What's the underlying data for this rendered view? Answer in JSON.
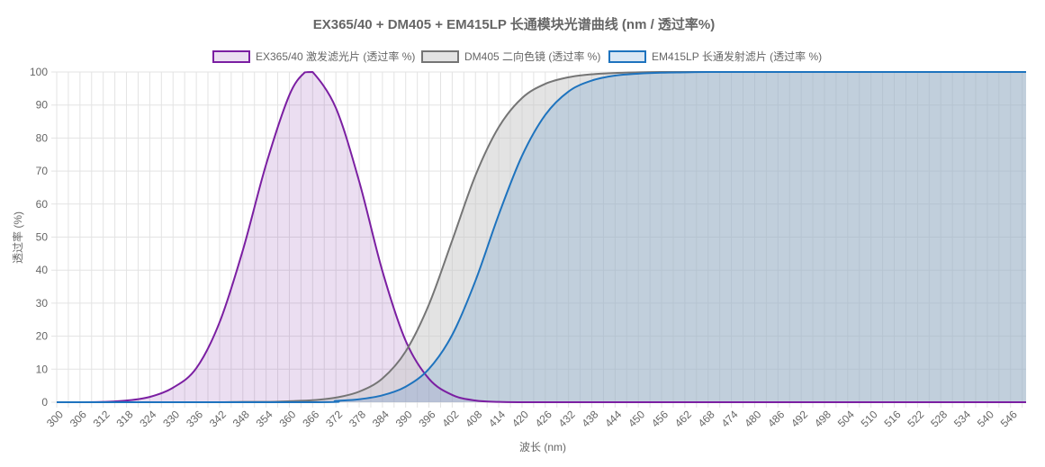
{
  "chart_data": {
    "type": "area",
    "title": "EX365/40 + DM405 + EM415LP 长通模块光谱曲线 (nm / 透过率%)",
    "xlabel": "波长 (nm)",
    "ylabel": "透过率 (%)",
    "xlim": [
      300,
      550
    ],
    "ylim": [
      0,
      100
    ],
    "x_ticks": [
      300,
      306,
      312,
      318,
      324,
      330,
      336,
      342,
      348,
      354,
      360,
      366,
      372,
      378,
      384,
      390,
      396,
      402,
      408,
      414,
      420,
      426,
      432,
      438,
      444,
      450,
      456,
      462,
      468,
      474,
      480,
      486,
      492,
      498,
      504,
      510,
      516,
      522,
      528,
      534,
      540,
      546
    ],
    "y_ticks": [
      0,
      10,
      20,
      30,
      40,
      50,
      60,
      70,
      80,
      90,
      100
    ],
    "grid": true,
    "legend_position": "top-center",
    "series": [
      {
        "name": "EX365/40 激发滤光片 (透过率 %)",
        "color": "#7b1fa2",
        "fill": "rgba(123,31,162,0.15)",
        "x": [
          300,
          306,
          312,
          318,
          324,
          330,
          336,
          342,
          348,
          354,
          360,
          364,
          366,
          372,
          378,
          384,
          390,
          396,
          402,
          408,
          414,
          420,
          426,
          432,
          438,
          444,
          450,
          550
        ],
        "values": [
          0,
          0,
          0.1,
          0.5,
          1.6,
          4.4,
          10.3,
          24.2,
          46.0,
          72.0,
          93.0,
          99.9,
          100,
          89.1,
          66.9,
          39.7,
          18.6,
          7.1,
          2.2,
          0.5,
          0.1,
          0,
          0,
          0,
          0,
          0,
          0,
          0
        ]
      },
      {
        "name": "DM405 二向色镜 (透过率 %)",
        "color": "#757575",
        "fill": "rgba(200,200,200,0.5)",
        "x": [
          300,
          330,
          342,
          348,
          354,
          360,
          366,
          372,
          378,
          384,
          390,
          396,
          402,
          408,
          414,
          420,
          426,
          432,
          438,
          444,
          450,
          456,
          462,
          468,
          550
        ],
        "values": [
          0,
          0,
          0,
          0.1,
          0.1,
          0.3,
          0.6,
          1.4,
          3.2,
          7.2,
          15.4,
          29.6,
          49.0,
          68.7,
          83.3,
          92.1,
          96.4,
          98.4,
          99.3,
          99.7,
          99.9,
          100,
          100,
          100,
          100
        ]
      },
      {
        "name": "EM415LP 长通发射滤片 (透过率 %)",
        "color": "#1e73be",
        "fill": "rgba(30,115,190,0.17)",
        "x": [
          300,
          366,
          372,
          378,
          384,
          390,
          396,
          402,
          408,
          414,
          420,
          426,
          432,
          438,
          444,
          450,
          456,
          462,
          468,
          474,
          480,
          550
        ],
        "values": [
          0,
          0,
          0.4,
          0.9,
          2.1,
          4.7,
          10.1,
          20.4,
          36.8,
          56.8,
          74.6,
          87.0,
          94.1,
          97.4,
          98.9,
          99.5,
          99.8,
          99.9,
          100,
          100,
          100,
          100
        ]
      }
    ]
  }
}
